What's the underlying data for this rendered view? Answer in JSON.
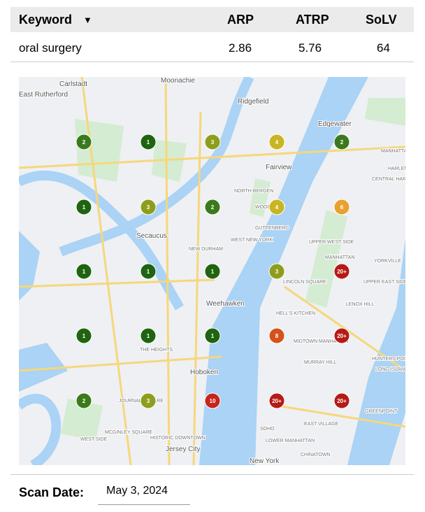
{
  "table": {
    "header": [
      "Keyword",
      "ARP",
      "ATRP",
      "SoLV"
    ],
    "rows": [
      [
        "oral surgery",
        "2.86",
        "5.76",
        "64"
      ]
    ]
  },
  "map": {
    "labels": [
      "Carlstadt",
      "Moonachie",
      "Ridgefield",
      "East Rutherford",
      "Edgewater",
      "Fairview",
      "NORTH BERGEN",
      "WOODCLIFF",
      "GUTTENBERG",
      "WEST NEW YORK",
      "Secaucus",
      "NEW DURHAM",
      "Weehawken",
      "HELL'S KITCHEN",
      "LINCOLN SQUARE",
      "UPPER WEST SIDE",
      "MANHATTAN",
      "MIDTOWN MANHATTAN",
      "MURRAY HILL",
      "THE HEIGHTS",
      "Hoboken",
      "JOURNAL SQUARE",
      "MCGINLEY SQUARE",
      "WEST SIDE",
      "HISTORIC DOWNTOWN",
      "Jersey City",
      "EAST VILLAGE",
      "SOHO",
      "LOWER MANHATTAN",
      "CHINATOWN",
      "GREENPOINT",
      "HUNTERS POINT",
      "LONG ISLAND CITY",
      "LENOX HILL",
      "UPPER EAST SIDE",
      "YORKVILLE",
      "HARLEM",
      "CENTRAL HARLEM",
      "MANHATTANVILLE",
      "New York"
    ],
    "grid": [
      [
        {
          "label": "2",
          "color": "#3b7a1c"
        },
        {
          "label": "1",
          "color": "#1f6410"
        },
        {
          "label": "3",
          "color": "#8f9d1c"
        },
        {
          "label": "4",
          "color": "#c9b422"
        },
        {
          "label": "2",
          "color": "#3b7a1c"
        }
      ],
      [
        {
          "label": "1",
          "color": "#1f6410"
        },
        {
          "label": "3",
          "color": "#8f9d1c"
        },
        {
          "label": "2",
          "color": "#3b7a1c"
        },
        {
          "label": "4",
          "color": "#c9b422"
        },
        {
          "label": "6",
          "color": "#e9a02e"
        }
      ],
      [
        {
          "label": "1",
          "color": "#1f6410"
        },
        {
          "label": "1",
          "color": "#1f6410"
        },
        {
          "label": "1",
          "color": "#1f6410"
        },
        {
          "label": "3",
          "color": "#8f9d1c"
        },
        {
          "label": "20+",
          "color": "#b61a17"
        }
      ],
      [
        {
          "label": "1",
          "color": "#1f6410"
        },
        {
          "label": "1",
          "color": "#1f6410"
        },
        {
          "label": "1",
          "color": "#1f6410"
        },
        {
          "label": "8",
          "color": "#d4521c"
        },
        {
          "label": "20+",
          "color": "#b61a17"
        }
      ],
      [
        {
          "label": "2",
          "color": "#3b7a1c"
        },
        {
          "label": "3",
          "color": "#8f9d1c"
        },
        {
          "label": "10",
          "color": "#c8231d"
        },
        {
          "label": "20+",
          "color": "#b61a17"
        },
        {
          "label": "20+",
          "color": "#b61a17"
        }
      ]
    ]
  },
  "scan": {
    "label": "Scan Date:",
    "value": "May 3, 2024"
  }
}
